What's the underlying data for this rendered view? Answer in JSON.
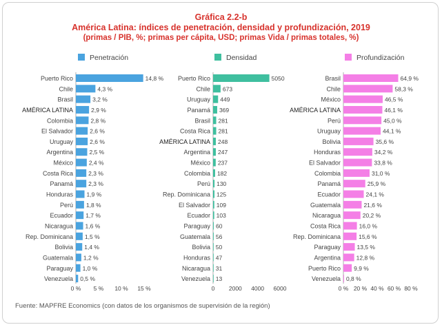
{
  "header": {
    "label": "Gráfica 2.2-b",
    "title": "América Latina: índices de penetración, densidad y profundización, 2019",
    "subtitle": "(primas / PIB, %; primas per cápita, USD; primas Vida / primas totales, %)"
  },
  "source": "Fuente: MAPFRE Economics (con datos de los organismos de supervisión de la región)",
  "chart_data": [
    {
      "type": "bar",
      "orientation": "horizontal",
      "legend": "Penetración",
      "color": "#4aa3df",
      "xlim": [
        0,
        15
      ],
      "ticks": [
        0,
        5,
        10,
        15
      ],
      "tick_labels": [
        "0 %",
        "5 %",
        "10 %",
        "15 %"
      ],
      "categories": [
        "Puerto Rico",
        "Chile",
        "Brasil",
        "AMÉRICA LATINA",
        "Colombia",
        "El Salvador",
        "Uruguay",
        "Argentina",
        "México",
        "Costa Rica",
        "Panamá",
        "Honduras",
        "Perú",
        "Ecuador",
        "Nicaragua",
        "Rep. Dominicana",
        "Bolivia",
        "Guatemala",
        "Paraguay",
        "Venezuela"
      ],
      "values": [
        14.8,
        4.3,
        3.2,
        2.9,
        2.8,
        2.6,
        2.6,
        2.5,
        2.4,
        2.3,
        2.3,
        1.9,
        1.8,
        1.7,
        1.6,
        1.5,
        1.4,
        1.2,
        1.0,
        0.5
      ],
      "value_labels": [
        "14,8 %",
        "4,3 %",
        "3,2 %",
        "2,9 %",
        "2,8 %",
        "2,6 %",
        "2,6 %",
        "2,5 %",
        "2,4 %",
        "2,3 %",
        "2,3 %",
        "1,9 %",
        "1,8 %",
        "1,7 %",
        "1,6 %",
        "1,5 %",
        "1,4 %",
        "1,2 %",
        "1,0 %",
        "0,5 %"
      ]
    },
    {
      "type": "bar",
      "orientation": "horizontal",
      "legend": "Densidad",
      "color": "#3fbf9f",
      "xlim": [
        0,
        6000
      ],
      "ticks": [
        0,
        2000,
        4000,
        6000
      ],
      "tick_labels": [
        "0",
        "2000",
        "4000",
        "6000"
      ],
      "categories": [
        "Puerto Rico",
        "Chile",
        "Uruguay",
        "Panamá",
        "Brasil",
        "Costa Rica",
        "AMÉRICA LATINA",
        "Argentina",
        "México",
        "Colombia",
        "Perú",
        "Rep. Dominicana",
        "El Salvador",
        "Ecuador",
        "Paraguay",
        "Guatemala",
        "Bolivia",
        "Honduras",
        "Nicaragua",
        "Venezuela"
      ],
      "values": [
        5050,
        673,
        449,
        369,
        281,
        281,
        248,
        247,
        237,
        182,
        130,
        125,
        109,
        103,
        60,
        56,
        50,
        47,
        31,
        13
      ],
      "value_labels": [
        "5050",
        "673",
        "449",
        "369",
        "281",
        "281",
        "248",
        "247",
        "237",
        "182",
        "130",
        "125",
        "109",
        "103",
        "60",
        "56",
        "50",
        "47",
        "31",
        "13"
      ]
    },
    {
      "type": "bar",
      "orientation": "horizontal",
      "legend": "Profundización",
      "color": "#f47fe6",
      "xlim": [
        0,
        80
      ],
      "ticks": [
        0,
        20,
        40,
        60,
        80
      ],
      "tick_labels": [
        "0 %",
        "20 %",
        "40 %",
        "60 %",
        "80 %"
      ],
      "categories": [
        "Brasil",
        "Chile",
        "México",
        "AMÉRICA LATINA",
        "Perú",
        "Uruguay",
        "Bolivia",
        "Honduras",
        "El Salvador",
        "Colombia",
        "Panamá",
        "Ecuador",
        "Guatemala",
        "Nicaragua",
        "Costa Rica",
        "Rep. Dominicana",
        "Paraguay",
        "Argentina",
        "Puerto Rico",
        "Venezuela"
      ],
      "values": [
        64.9,
        58.3,
        46.5,
        46.1,
        45.0,
        44.1,
        35.6,
        34.2,
        33.8,
        31.0,
        25.9,
        24.1,
        21.6,
        20.2,
        16.0,
        15.6,
        13.5,
        12.8,
        9.9,
        0.8
      ],
      "value_labels": [
        "64,9 %",
        "58,3 %",
        "46,5 %",
        "46,1 %",
        "45,0 %",
        "44,1 %",
        "35,6 %",
        "34,2 %",
        "33,8 %",
        "31,0 %",
        "25,9 %",
        "24,1 %",
        "21,6 %",
        "20,2 %",
        "16,0 %",
        "15,6 %",
        "13,5 %",
        "12,8 %",
        "9,9 %",
        "0,8 %"
      ]
    }
  ]
}
